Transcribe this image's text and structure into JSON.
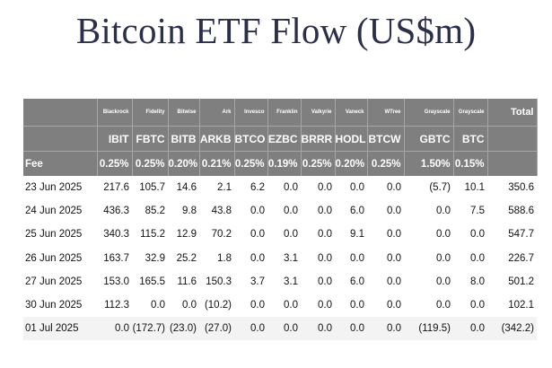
{
  "title": "Bitcoin ETF Flow (US$m)",
  "issuers": [
    "",
    "Blackrock",
    "Fidelity",
    "Bitwise",
    "Ark",
    "Invesco",
    "Franklin",
    "Valkyrie",
    "Vaneck",
    "WTree",
    "Grayscale",
    "Grayscale",
    "Total"
  ],
  "tickers": [
    "",
    "IBIT",
    "FBTC",
    "BITB",
    "ARKB",
    "BTCO",
    "EZBC",
    "BRRR",
    "HODL",
    "BTCW",
    "GBTC",
    "BTC",
    ""
  ],
  "fee_label": "Fee",
  "fees": [
    "0.25%",
    "0.25%",
    "0.20%",
    "0.21%",
    "0.25%",
    "0.19%",
    "0.25%",
    "0.20%",
    "0.25%",
    "1.50%",
    "0.15%",
    ""
  ],
  "rows": [
    {
      "date": "23 Jun 2025",
      "values": [
        "217.6",
        "105.7",
        "14.6",
        "2.1",
        "6.2",
        "0.0",
        "0.0",
        "0.0",
        "0.0",
        "(5.7)",
        "10.1",
        "350.6"
      ]
    },
    {
      "date": "24 Jun 2025",
      "values": [
        "436.3",
        "85.2",
        "9.8",
        "43.8",
        "0.0",
        "0.0",
        "0.0",
        "6.0",
        "0.0",
        "0.0",
        "7.5",
        "588.6"
      ]
    },
    {
      "date": "25 Jun 2025",
      "values": [
        "340.3",
        "115.2",
        "12.9",
        "70.2",
        "0.0",
        "0.0",
        "0.0",
        "9.1",
        "0.0",
        "0.0",
        "0.0",
        "547.7"
      ]
    },
    {
      "date": "26 Jun 2025",
      "values": [
        "163.7",
        "32.9",
        "25.2",
        "1.8",
        "0.0",
        "3.1",
        "0.0",
        "0.0",
        "0.0",
        "0.0",
        "0.0",
        "226.7"
      ]
    },
    {
      "date": "27 Jun 2025",
      "values": [
        "153.0",
        "165.5",
        "11.6",
        "150.3",
        "3.7",
        "3.1",
        "0.0",
        "6.0",
        "0.0",
        "0.0",
        "8.0",
        "501.2"
      ]
    },
    {
      "date": "30 Jun 2025",
      "values": [
        "112.3",
        "0.0",
        "0.0",
        "(10.2)",
        "0.0",
        "0.0",
        "0.0",
        "0.0",
        "0.0",
        "0.0",
        "0.0",
        "102.1"
      ]
    },
    {
      "date": "01 Jul 2025",
      "values": [
        "0.0",
        "(172.7)",
        "(23.0)",
        "(27.0)",
        "0.0",
        "0.0",
        "0.0",
        "0.0",
        "0.0",
        "(119.5)",
        "0.0",
        "(342.2)"
      ]
    }
  ],
  "colors": {
    "title": "#2b2f4a",
    "header_bg": "#7f7f7f",
    "negative": "#e00000"
  }
}
